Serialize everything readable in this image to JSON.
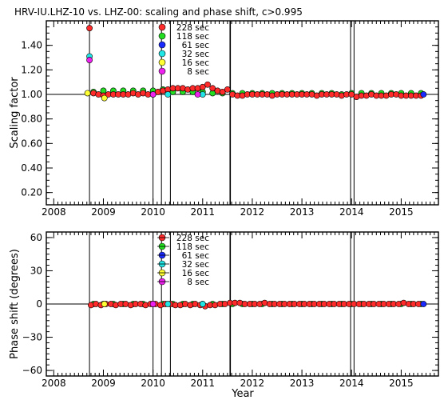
{
  "title": "HRV-IU.LHZ-10 vs. LHZ-00: scaling and phase shift, c>0.995",
  "x_axis_label": "Year",
  "legend_entries": [
    {
      "label": "228 sec",
      "color": "#ff2a2a"
    },
    {
      "label": "118 sec",
      "color": "#22dd22"
    },
    {
      "label": "61 sec",
      "color": "#1a2aff"
    },
    {
      "label": "32 sec",
      "color": "#22e6e6"
    },
    {
      "label": "16 sec",
      "color": "#ffff33"
    },
    {
      "label": "8 sec",
      "color": "#ee22ee"
    }
  ],
  "chart_data": [
    {
      "type": "scatter",
      "ylabel": "Scaling factor",
      "xlabel": "",
      "xlim": [
        2007.85,
        2015.75
      ],
      "ylim": [
        0.1,
        1.6
      ],
      "x_ticks": [
        "2008",
        "2009",
        "2010",
        "2011",
        "2012",
        "2013",
        "2014",
        "2015"
      ],
      "y_ticks": [
        "0.20",
        "0.40",
        "0.60",
        "0.80",
        "1.00",
        "1.20",
        "1.40"
      ],
      "reference_line": 1.0,
      "event_lines": [
        2008.72,
        2010.0,
        2010.17,
        2010.35,
        2011.55,
        2011.56,
        2013.98,
        2014.05
      ],
      "series": [
        {
          "name": "228 sec",
          "color": "#ff2a2a",
          "x": [
            2008.72,
            2008.8,
            2008.9,
            2009.0,
            2009.1,
            2009.2,
            2009.3,
            2009.4,
            2009.5,
            2009.6,
            2009.7,
            2009.8,
            2009.9,
            2010.0,
            2010.1,
            2010.2,
            2010.3,
            2010.4,
            2010.5,
            2010.6,
            2010.7,
            2010.8,
            2010.9,
            2011.0,
            2011.1,
            2011.2,
            2011.3,
            2011.4,
            2011.5,
            2011.6,
            2011.7,
            2011.8,
            2011.9,
            2012.0,
            2012.1,
            2012.2,
            2012.3,
            2012.4,
            2012.5,
            2012.6,
            2012.7,
            2012.8,
            2012.9,
            2013.0,
            2013.1,
            2013.2,
            2013.3,
            2013.4,
            2013.5,
            2013.6,
            2013.7,
            2013.8,
            2013.9,
            2014.0,
            2014.1,
            2014.2,
            2014.3,
            2014.4,
            2014.5,
            2014.6,
            2014.7,
            2014.8,
            2014.9,
            2015.0,
            2015.1,
            2015.2,
            2015.3,
            2015.4
          ],
          "y": [
            1.54,
            1.01,
            1.0,
            0.99,
            1.0,
            1.0,
            1.0,
            1.0,
            1.0,
            1.01,
            1.0,
            1.01,
            1.0,
            1.0,
            1.02,
            1.03,
            1.04,
            1.05,
            1.05,
            1.05,
            1.04,
            1.05,
            1.05,
            1.06,
            1.08,
            1.05,
            1.03,
            1.02,
            1.04,
            1.0,
            0.99,
            0.99,
            1.0,
            1.0,
            1.0,
            1.0,
            1.0,
            0.99,
            1.0,
            1.0,
            1.0,
            1.0,
            1.0,
            1.0,
            1.0,
            1.0,
            0.99,
            1.0,
            1.0,
            1.0,
            1.0,
            0.99,
            1.0,
            1.0,
            0.98,
            0.99,
            0.99,
            1.0,
            0.99,
            0.99,
            0.99,
            1.0,
            1.0,
            0.99,
            0.99,
            0.99,
            0.99,
            0.99
          ]
        },
        {
          "name": "118 sec",
          "color": "#22dd22",
          "x": [
            2008.8,
            2009.0,
            2009.2,
            2009.4,
            2009.6,
            2009.8,
            2010.0,
            2010.2,
            2010.4,
            2010.6,
            2010.8,
            2011.0,
            2011.2,
            2011.4,
            2011.6,
            2011.8,
            2012.0,
            2012.2,
            2012.4,
            2012.6,
            2012.8,
            2013.0,
            2013.2,
            2013.4,
            2013.6,
            2013.8,
            2014.0,
            2014.2,
            2014.4,
            2014.6,
            2014.8,
            2015.0,
            2015.2,
            2015.4
          ],
          "y": [
            1.02,
            1.03,
            1.03,
            1.03,
            1.03,
            1.03,
            1.03,
            1.04,
            1.02,
            1.02,
            1.02,
            1.02,
            1.01,
            1.01,
            1.01,
            1.01,
            1.01,
            1.01,
            1.01,
            1.01,
            1.01,
            1.01,
            1.01,
            1.01,
            1.01,
            1.0,
            1.01,
            1.01,
            1.01,
            1.01,
            1.01,
            1.01,
            1.01,
            1.01
          ]
        },
        {
          "name": "61 sec",
          "color": "#1a2aff",
          "x": [
            2015.45
          ],
          "y": [
            1.0
          ]
        },
        {
          "name": "32 sec",
          "color": "#22e6e6",
          "x": [
            2008.72,
            2010.3,
            2011.0
          ],
          "y": [
            1.31,
            1.0,
            1.0
          ]
        },
        {
          "name": "16 sec",
          "color": "#ffff33",
          "x": [
            2008.68,
            2009.02
          ],
          "y": [
            1.01,
            0.97
          ]
        },
        {
          "name": "8 sec",
          "color": "#ee22ee",
          "x": [
            2008.72,
            2010.0,
            2010.9
          ],
          "y": [
            1.28,
            1.0,
            1.0
          ]
        }
      ]
    },
    {
      "type": "scatter",
      "ylabel": "Phase shift (degrees)",
      "xlabel": "Year",
      "xlim": [
        2007.85,
        2015.75
      ],
      "ylim": [
        -65,
        65
      ],
      "x_ticks": [
        "2008",
        "2009",
        "2010",
        "2011",
        "2012",
        "2013",
        "2014",
        "2015"
      ],
      "y_ticks": [
        "60",
        "30",
        "0",
        "−30",
        "−60"
      ],
      "reference_line": 0,
      "event_lines": [
        2008.72,
        2010.0,
        2010.17,
        2010.35,
        2011.55,
        2011.56,
        2013.98,
        2014.05
      ],
      "series": [
        {
          "name": "228 sec",
          "color": "#ff2a2a",
          "x": [
            2008.75,
            2008.85,
            2008.95,
            2009.05,
            2009.15,
            2009.25,
            2009.35,
            2009.45,
            2009.55,
            2009.65,
            2009.75,
            2009.85,
            2009.95,
            2010.05,
            2010.15,
            2010.25,
            2010.35,
            2010.45,
            2010.55,
            2010.65,
            2010.75,
            2010.85,
            2010.95,
            2011.05,
            2011.15,
            2011.25,
            2011.35,
            2011.45,
            2011.55,
            2011.65,
            2011.75,
            2011.85,
            2011.95,
            2012.05,
            2012.15,
            2012.25,
            2012.35,
            2012.45,
            2012.55,
            2012.65,
            2012.75,
            2012.85,
            2012.95,
            2013.05,
            2013.15,
            2013.25,
            2013.35,
            2013.45,
            2013.55,
            2013.65,
            2013.75,
            2013.85,
            2013.95,
            2014.05,
            2014.15,
            2014.25,
            2014.35,
            2014.45,
            2014.55,
            2014.65,
            2014.75,
            2014.85,
            2014.95,
            2015.05,
            2015.15,
            2015.25,
            2015.35
          ],
          "y": [
            -1,
            0,
            -1,
            0,
            0,
            -1,
            0,
            0,
            -1,
            0,
            0,
            -1,
            0,
            0,
            -1,
            0,
            0,
            -1,
            -1,
            0,
            -1,
            0,
            -1,
            -2,
            -1,
            -1,
            0,
            0,
            1,
            1,
            1,
            0,
            0,
            0,
            0,
            1,
            0,
            0,
            0,
            0,
            0,
            0,
            0,
            0,
            0,
            0,
            0,
            0,
            0,
            0,
            0,
            0,
            0,
            0,
            0,
            0,
            0,
            0,
            0,
            0,
            0,
            0,
            0,
            1,
            0,
            0,
            0
          ]
        },
        {
          "name": "118 sec",
          "color": "#22dd22",
          "x": [
            2008.8,
            2009.0,
            2009.2,
            2009.4,
            2009.6,
            2009.8,
            2010.0,
            2010.2,
            2010.4,
            2010.6,
            2010.8,
            2011.0,
            2011.2,
            2011.4,
            2011.6,
            2011.8,
            2012.0,
            2012.2,
            2012.4,
            2012.6,
            2012.8,
            2013.0,
            2013.2,
            2013.4,
            2013.6,
            2013.8,
            2014.0,
            2014.2,
            2014.4,
            2014.6,
            2014.8,
            2015.0,
            2015.2,
            2015.4
          ],
          "y": [
            0,
            0,
            0,
            0,
            0,
            0,
            0,
            0,
            0,
            0,
            0,
            0,
            0,
            0,
            0,
            0,
            0,
            0,
            0,
            0,
            0,
            0,
            0,
            0,
            0,
            0,
            0,
            0,
            0,
            0,
            0,
            0,
            0,
            0
          ]
        },
        {
          "name": "61 sec",
          "color": "#1a2aff",
          "x": [
            2015.45
          ],
          "y": [
            0
          ]
        },
        {
          "name": "32 sec",
          "color": "#22e6e6",
          "x": [
            2010.3,
            2011.0
          ],
          "y": [
            0,
            0
          ]
        },
        {
          "name": "16 sec",
          "color": "#ffff33",
          "x": [
            2009.02
          ],
          "y": [
            0
          ]
        },
        {
          "name": "8 sec",
          "color": "#ee22ee",
          "x": [
            2010.0
          ],
          "y": [
            0
          ]
        }
      ]
    }
  ]
}
